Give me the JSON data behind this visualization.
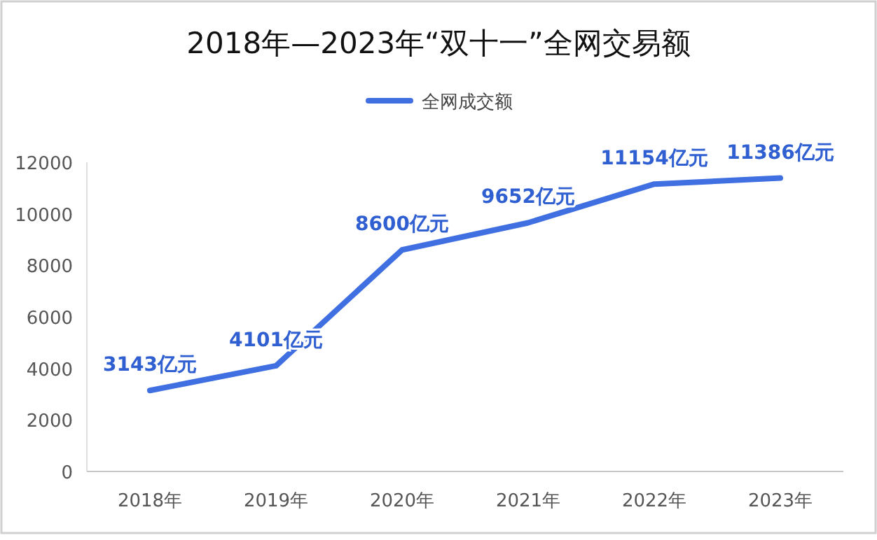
{
  "chart_data": {
    "type": "line",
    "title": "2018年—2023年“双十一”全网交易额",
    "categories": [
      "2018年",
      "2019年",
      "2020年",
      "2021年",
      "2022年",
      "2023年"
    ],
    "series": [
      {
        "name": "全网成交额",
        "color": "#3f6fe0",
        "values": [
          3143,
          4101,
          8600,
          9652,
          11154,
          11386
        ],
        "value_labels": [
          "3143亿元",
          "4101亿元",
          "8600亿元",
          "9652亿元",
          "11154亿元",
          "11386亿元"
        ]
      }
    ],
    "ylim": [
      0,
      12000
    ],
    "yticks": [
      0,
      2000,
      4000,
      6000,
      8000,
      10000,
      12000
    ],
    "grid": false,
    "legend": "top",
    "marker": "none",
    "line_style": "solid"
  }
}
